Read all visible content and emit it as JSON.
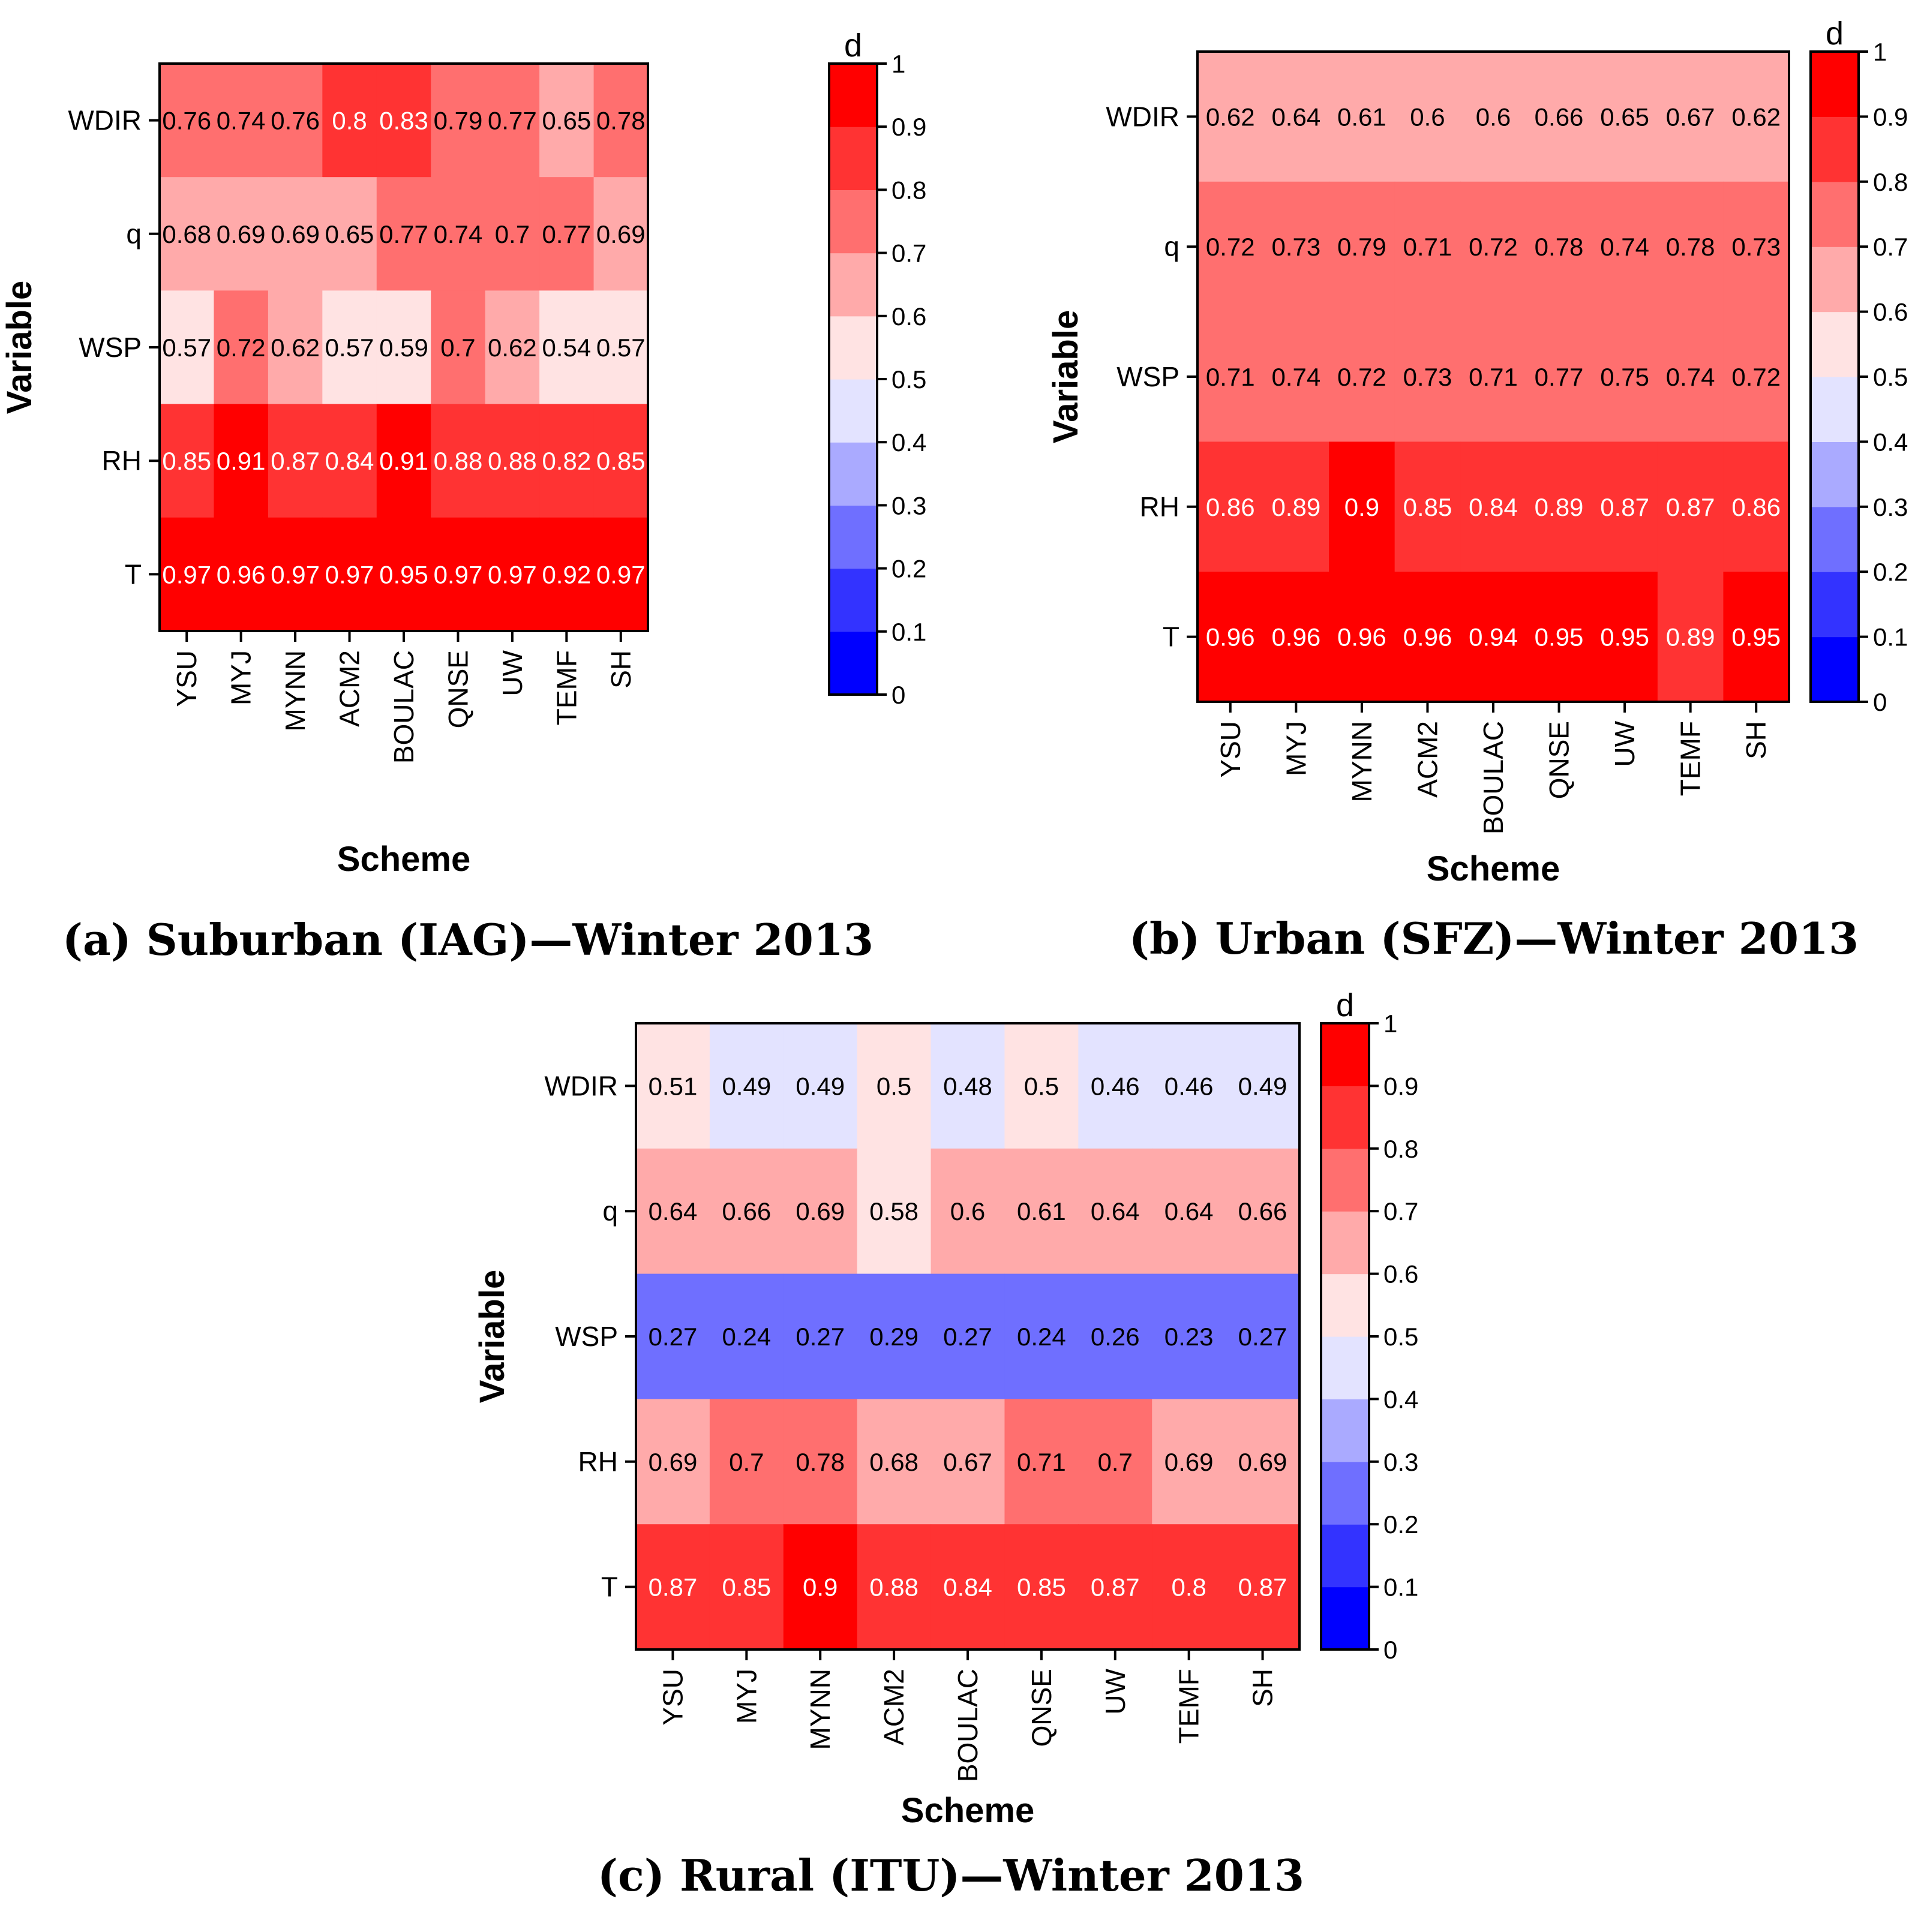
{
  "chart_data": [
    {
      "type": "heatmap",
      "caption": "(a) Suburban (IAG)—Winter 2013",
      "xlabel": "Scheme",
      "ylabel": "Variable",
      "colorbar_title": "d",
      "colorbar_ticks": [
        "0",
        "0.1",
        "0.2",
        "0.3",
        "0.4",
        "0.5",
        "0.6",
        "0.7",
        "0.8",
        "0.9",
        "1"
      ],
      "vrange": [
        0,
        1
      ],
      "x": [
        "YSU",
        "MYJ",
        "MYNN",
        "ACM2",
        "BOULAC",
        "QNSE",
        "UW",
        "TEMF",
        "SH"
      ],
      "y": [
        "WDIR",
        "q",
        "WSP",
        "RH",
        "T"
      ],
      "values": [
        [
          0.76,
          0.74,
          0.76,
          0.8,
          0.83,
          0.79,
          0.77,
          0.65,
          0.78
        ],
        [
          0.68,
          0.69,
          0.69,
          0.65,
          0.77,
          0.74,
          0.7,
          0.77,
          0.69
        ],
        [
          0.57,
          0.72,
          0.62,
          0.57,
          0.59,
          0.7,
          0.62,
          0.54,
          0.57
        ],
        [
          0.85,
          0.91,
          0.87,
          0.84,
          0.91,
          0.88,
          0.88,
          0.82,
          0.85
        ],
        [
          0.97,
          0.96,
          0.97,
          0.97,
          0.95,
          0.97,
          0.97,
          0.92,
          0.97
        ]
      ],
      "labels": [
        [
          "0.76",
          "0.74",
          "0.76",
          "0.8",
          "0.83",
          "0.79",
          "0.77",
          "0.65",
          "0.78"
        ],
        [
          "0.68",
          "0.69",
          "0.69",
          "0.65",
          "0.77",
          "0.74",
          "0.7",
          "0.77",
          "0.69"
        ],
        [
          "0.57",
          "0.72",
          "0.62",
          "0.57",
          "0.59",
          "0.7",
          "0.62",
          "0.54",
          "0.57"
        ],
        [
          "0.85",
          "0.91",
          "0.87",
          "0.84",
          "0.91",
          "0.88",
          "0.88",
          "0.82",
          "0.85"
        ],
        [
          "0.97",
          "0.96",
          "0.97",
          "0.97",
          "0.95",
          "0.97",
          "0.97",
          "0.92",
          "0.97"
        ]
      ]
    },
    {
      "type": "heatmap",
      "caption": "(b) Urban (SFZ)—Winter 2013",
      "xlabel": "Scheme",
      "ylabel": "Variable",
      "colorbar_title": "d",
      "colorbar_ticks": [
        "0",
        "0.1",
        "0.2",
        "0.3",
        "0.4",
        "0.5",
        "0.6",
        "0.7",
        "0.8",
        "0.9",
        "1"
      ],
      "vrange": [
        0,
        1
      ],
      "x": [
        "YSU",
        "MYJ",
        "MYNN",
        "ACM2",
        "BOULAC",
        "QNSE",
        "UW",
        "TEMF",
        "SH"
      ],
      "y": [
        "WDIR",
        "q",
        "WSP",
        "RH",
        "T"
      ],
      "values": [
        [
          0.62,
          0.64,
          0.61,
          0.6,
          0.6,
          0.66,
          0.65,
          0.67,
          0.62
        ],
        [
          0.72,
          0.73,
          0.79,
          0.71,
          0.72,
          0.78,
          0.74,
          0.78,
          0.73
        ],
        [
          0.71,
          0.74,
          0.72,
          0.73,
          0.71,
          0.77,
          0.75,
          0.74,
          0.72
        ],
        [
          0.86,
          0.89,
          0.9,
          0.85,
          0.84,
          0.89,
          0.87,
          0.87,
          0.86
        ],
        [
          0.96,
          0.96,
          0.96,
          0.96,
          0.94,
          0.95,
          0.95,
          0.89,
          0.95
        ]
      ],
      "labels": [
        [
          "0.62",
          "0.64",
          "0.61",
          "0.6",
          "0.6",
          "0.66",
          "0.65",
          "0.67",
          "0.62"
        ],
        [
          "0.72",
          "0.73",
          "0.79",
          "0.71",
          "0.72",
          "0.78",
          "0.74",
          "0.78",
          "0.73"
        ],
        [
          "0.71",
          "0.74",
          "0.72",
          "0.73",
          "0.71",
          "0.77",
          "0.75",
          "0.74",
          "0.72"
        ],
        [
          "0.86",
          "0.89",
          "0.9",
          "0.85",
          "0.84",
          "0.89",
          "0.87",
          "0.87",
          "0.86"
        ],
        [
          "0.96",
          "0.96",
          "0.96",
          "0.96",
          "0.94",
          "0.95",
          "0.95",
          "0.89",
          "0.95"
        ]
      ]
    },
    {
      "type": "heatmap",
      "caption": "(c) Rural (ITU)—Winter 2013",
      "xlabel": "Scheme",
      "ylabel": "Variable",
      "colorbar_title": "d",
      "colorbar_ticks": [
        "0",
        "0.1",
        "0.2",
        "0.3",
        "0.4",
        "0.5",
        "0.6",
        "0.7",
        "0.8",
        "0.9",
        "1"
      ],
      "vrange": [
        0,
        1
      ],
      "x": [
        "YSU",
        "MYJ",
        "MYNN",
        "ACM2",
        "BOULAC",
        "QNSE",
        "UW",
        "TEMF",
        "SH"
      ],
      "y": [
        "WDIR",
        "q",
        "WSP",
        "RH",
        "T"
      ],
      "values": [
        [
          0.51,
          0.49,
          0.49,
          0.5,
          0.48,
          0.5,
          0.46,
          0.46,
          0.49
        ],
        [
          0.64,
          0.66,
          0.69,
          0.58,
          0.6,
          0.61,
          0.64,
          0.64,
          0.66
        ],
        [
          0.27,
          0.24,
          0.27,
          0.29,
          0.27,
          0.24,
          0.26,
          0.23,
          0.27
        ],
        [
          0.69,
          0.7,
          0.78,
          0.68,
          0.67,
          0.71,
          0.7,
          0.69,
          0.69
        ],
        [
          0.87,
          0.85,
          0.9,
          0.88,
          0.84,
          0.85,
          0.87,
          0.8,
          0.87
        ]
      ],
      "labels": [
        [
          "0.51",
          "0.49",
          "0.49",
          "0.5",
          "0.48",
          "0.5",
          "0.46",
          "0.46",
          "0.49"
        ],
        [
          "0.64",
          "0.66",
          "0.69",
          "0.58",
          "0.6",
          "0.61",
          "0.64",
          "0.64",
          "0.66"
        ],
        [
          "0.27",
          "0.24",
          "0.27",
          "0.29",
          "0.27",
          "0.24",
          "0.26",
          "0.23",
          "0.27"
        ],
        [
          "0.69",
          "0.7",
          "0.78",
          "0.68",
          "0.67",
          "0.71",
          "0.7",
          "0.69",
          "0.69"
        ],
        [
          "0.87",
          "0.85",
          "0.9",
          "0.88",
          "0.84",
          "0.85",
          "0.87",
          "0.8",
          "0.87"
        ]
      ]
    }
  ],
  "colors": {
    "bins": [
      "#0000ff",
      "#3333ff",
      "#6f6fff",
      "#aaaaff",
      "#e3e3ff",
      "#ffe3e3",
      "#ffaaaa",
      "#ff6f6f",
      "#ff3333",
      "#ff0000"
    ],
    "frame": "#000000",
    "text_dark": "#000000",
    "text_light": "#ffffff"
  }
}
